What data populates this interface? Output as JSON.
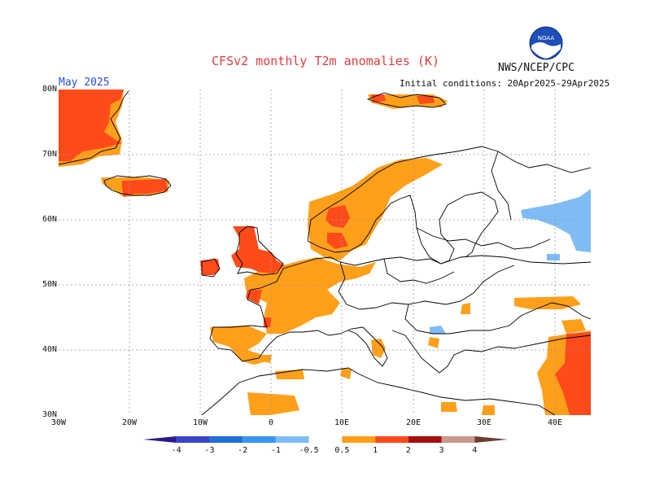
{
  "header": {
    "title": "CFSv2 monthly T2m anomalies (K)",
    "agency": "NWS/NCEP/CPC",
    "month": "May 2025",
    "initial_conditions": "Initial conditions: 20Apr2025-29Apr2025",
    "logo_icon": "noaa-logo-icon"
  },
  "axes": {
    "lat_labels": [
      "80N",
      "70N",
      "60N",
      "50N",
      "40N",
      "30N"
    ],
    "lon_labels": [
      "30W",
      "20W",
      "10W",
      "0",
      "10E",
      "20E",
      "30E",
      "40E"
    ]
  },
  "colorbar": {
    "levels": [
      "-4",
      "-3",
      "-2",
      "-1",
      "-0.5",
      "0.5",
      "1",
      "2",
      "3",
      "4"
    ],
    "colors": [
      "#2a1a8f",
      "#3b43c8",
      "#1e6fd8",
      "#3a95f0",
      "#7fbcf5",
      "#ffffff",
      "#ff9f1a",
      "#ff4a1a",
      "#a50e0e",
      "#c89a8c",
      "#6b4030"
    ]
  },
  "colors": {
    "warm_1": "#ff9f1a",
    "warm_2": "#ff4a1a",
    "cool_1": "#7fbcf5",
    "title": "#e03c3c",
    "month": "#2a4fd6"
  }
}
